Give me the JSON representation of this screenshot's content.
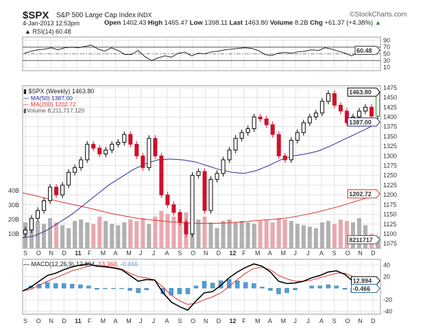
{
  "header": {
    "symbol": "$SPX",
    "name": "S&P 500 Large Cap Index",
    "exchange": "INDX",
    "brand": "©StockCharts.com",
    "date": "4-Jan-2013 12:53pm",
    "open_label": "Open",
    "open": "1402.43",
    "high_label": "High",
    "high": "1465.47",
    "low_label": "Low",
    "low": "1398.11",
    "last_label": "Last",
    "last": "1463.80",
    "volume_label": "Volume",
    "volume": "8.2B",
    "chg_label": "Chg",
    "chg": "+61.37 (+4.38%)"
  },
  "legend": {
    "rsi": "RSI(14) 60.48",
    "price": "$SPX (Weekly) 1463.80",
    "ma50": "MA(50) 1387.00",
    "ma200": "MA(200) 1202.72",
    "volume": "Volume 8,211,717,120",
    "macd_name": "MACD(12,26,9)",
    "macd": "12.894,",
    "signal": "13.360,",
    "hist": "-0.466"
  },
  "colors": {
    "up": "#ffffff",
    "down": "#d0102a",
    "ma50": "#2a2a9a",
    "ma200": "#e03030",
    "volume": "#b0b0b0",
    "volume_down": "#e8a8b0",
    "hist": "#4f9fd8",
    "macd": "#000000",
    "signal": "#e03030",
    "rsi_fill": "#3a6a3a",
    "last_up": "#2a9a2a"
  },
  "chart_data": [
    {
      "type": "line",
      "title": "RSI(14)",
      "ylim": [
        0,
        100
      ],
      "ticks": [
        "90",
        "70",
        "50",
        "30",
        "10"
      ],
      "tick_values": [
        90,
        70,
        50,
        30,
        10
      ],
      "last_label": "60.48",
      "values": [
        52,
        58,
        62,
        64,
        68,
        62,
        68,
        70,
        68,
        72,
        76,
        64,
        58,
        68,
        60,
        48,
        48,
        60,
        42,
        30,
        38,
        44,
        40,
        52,
        55,
        44,
        52,
        50,
        56,
        58,
        62,
        64,
        66,
        68,
        66,
        60,
        48,
        45,
        52,
        54,
        52,
        56,
        58,
        62,
        60,
        68,
        64,
        58,
        52,
        44,
        54,
        55,
        52,
        60
      ]
    },
    {
      "type": "candlestick",
      "title": "$SPX (Weekly)",
      "ylim": [
        1063,
        1480
      ],
      "ticks": [
        1475,
        1450,
        1425,
        1400,
        1375,
        1350,
        1325,
        1300,
        1275,
        1250,
        1225,
        1200,
        1175,
        1150,
        1125,
        1100,
        1075
      ],
      "last_label": "1463.80",
      "ma50_label": "1387.00",
      "ma200_label": "1202.72",
      "volume_label": "8211717",
      "closes": [
        1110,
        1140,
        1160,
        1185,
        1220,
        1200,
        1225,
        1258,
        1270,
        1290,
        1330,
        1320,
        1305,
        1315,
        1330,
        1335,
        1355,
        1330,
        1300,
        1270,
        1345,
        1300,
        1200,
        1175,
        1155,
        1130,
        1100,
        1250,
        1260,
        1160,
        1240,
        1255,
        1290,
        1315,
        1345,
        1360,
        1370,
        1400,
        1395,
        1380,
        1355,
        1300,
        1290,
        1340,
        1360,
        1385,
        1400,
        1410,
        1440,
        1460,
        1430,
        1415,
        1385,
        1400,
        1415,
        1425,
        1402,
        1463.8
      ],
      "ma50": [
        1090,
        1095,
        1110,
        1130,
        1150,
        1175,
        1200,
        1225,
        1245,
        1265,
        1280,
        1290,
        1292,
        1290,
        1285,
        1275,
        1265,
        1258,
        1255,
        1262,
        1275,
        1290,
        1300,
        1305,
        1312,
        1325,
        1340,
        1355,
        1370,
        1387
      ],
      "ma200": [
        1205,
        1198,
        1190,
        1182,
        1175,
        1168,
        1160,
        1152,
        1146,
        1140,
        1136,
        1133,
        1130,
        1128,
        1127,
        1127,
        1128,
        1130,
        1133,
        1136,
        1138,
        1142,
        1148,
        1155,
        1163,
        1172,
        1182,
        1192,
        1202.72
      ],
      "volume_ticks": [
        "40B",
        "30B",
        "20B",
        "10B"
      ],
      "volume_tick_values": [
        40,
        30,
        20,
        10
      ],
      "volume_b": [
        18,
        20,
        19,
        17,
        21,
        18,
        16,
        14,
        19,
        20,
        18,
        17,
        22,
        19,
        17,
        16,
        18,
        20,
        19,
        21,
        17,
        22,
        26,
        24,
        22,
        23,
        25,
        21,
        20,
        22,
        18,
        14,
        19,
        20,
        18,
        19,
        18,
        17,
        19,
        20,
        18,
        21,
        20,
        19,
        17,
        16,
        15,
        14,
        18,
        19,
        17,
        20,
        19,
        18,
        21,
        16,
        10,
        8.2
      ]
    },
    {
      "type": "line",
      "title": "MACD(12,26,9)",
      "ylim": [
        -45,
        50
      ],
      "ticks": [
        "40",
        "20",
        "-20",
        "-40"
      ],
      "tick_values": [
        40,
        20,
        -20,
        -40
      ],
      "macd_label": "12.894",
      "hist_label": "-0.466",
      "macd": [
        -5,
        2,
        12,
        22,
        26,
        32,
        37,
        40,
        42,
        38,
        37,
        35,
        32,
        22,
        12,
        15,
        14,
        -8,
        -24,
        -32,
        -38,
        -22,
        -8,
        -6,
        5,
        18,
        28,
        36,
        42,
        38,
        28,
        12,
        8,
        9,
        12,
        18,
        22,
        28,
        30,
        24,
        12,
        11,
        11,
        12.9
      ],
      "signal": [
        -5,
        -2,
        5,
        12,
        18,
        24,
        30,
        34,
        38,
        40,
        38,
        36,
        33,
        26,
        20,
        18,
        14,
        2,
        -12,
        -22,
        -28,
        -26,
        -20,
        -15,
        -8,
        3,
        15,
        26,
        34,
        36,
        32,
        22,
        16,
        12,
        12,
        14,
        18,
        22,
        26,
        26,
        20,
        15,
        14,
        13.36
      ]
    },
    {
      "type": "axis",
      "months": [
        "S",
        "O",
        "N",
        "D",
        "11",
        "F",
        "M",
        "A",
        "M",
        "J",
        "J",
        "A",
        "S",
        "O",
        "N",
        "D",
        "12",
        "F",
        "M",
        "A",
        "M",
        "J",
        "J",
        "A",
        "S",
        "O",
        "N",
        "D"
      ]
    }
  ]
}
